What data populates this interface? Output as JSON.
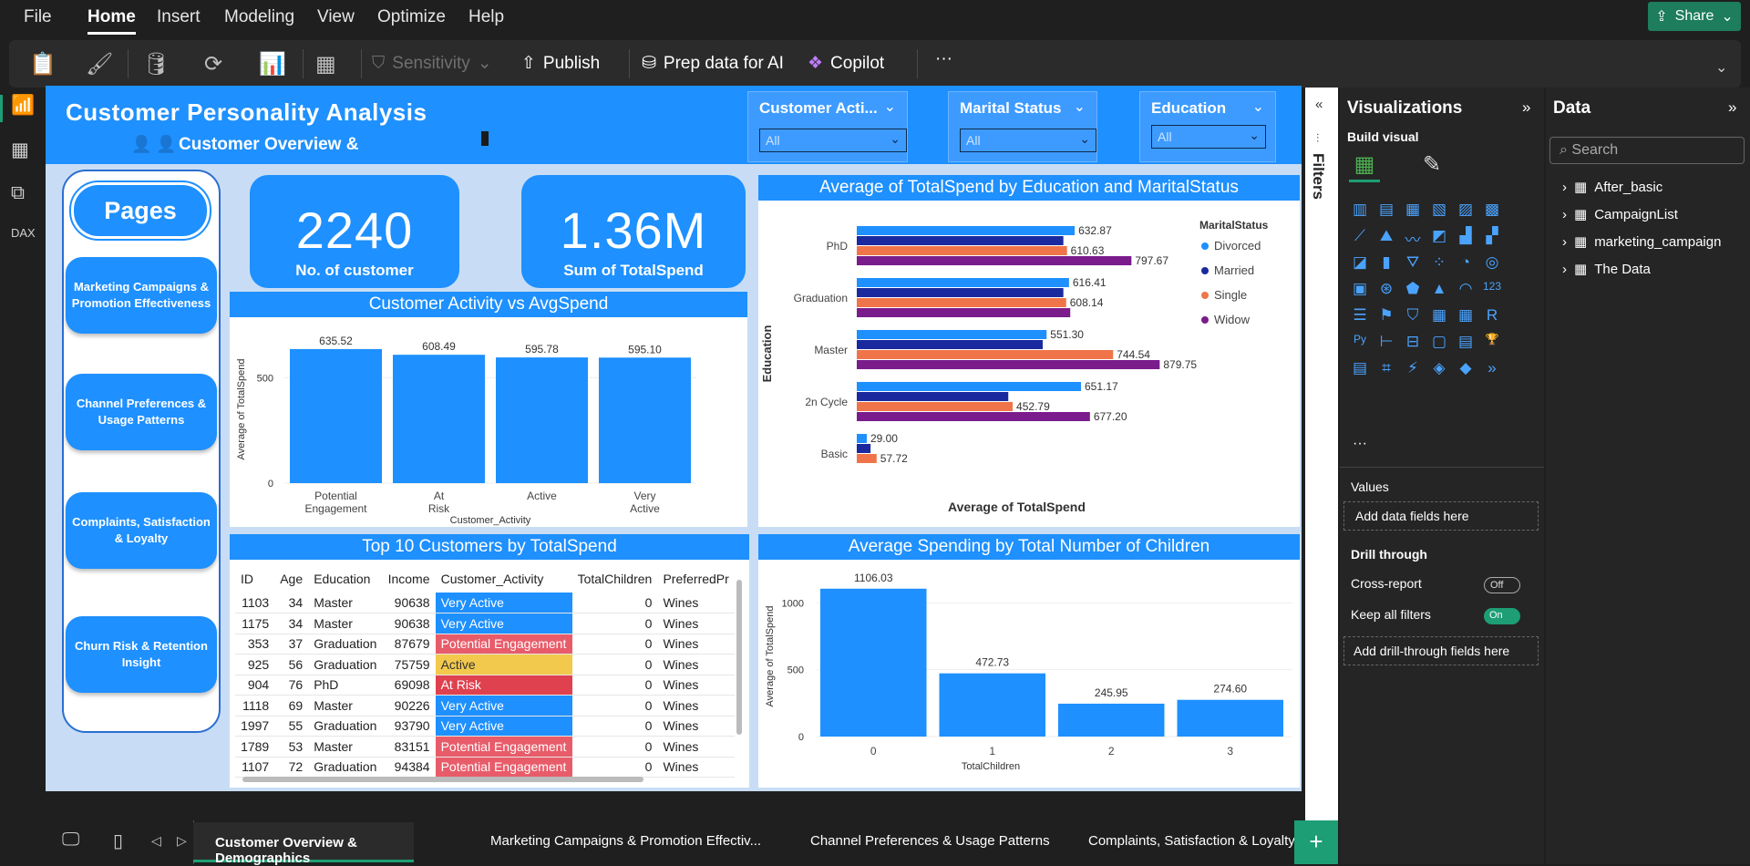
{
  "menubar": {
    "items": [
      "File",
      "Home",
      "Insert",
      "Modeling",
      "View",
      "Optimize",
      "Help"
    ],
    "share": "Share"
  },
  "ribbon": {
    "sensitivity": "Sensitivity",
    "publish": "Publish",
    "prep": "Prep data for AI",
    "copilot": "Copilot",
    "more": "···"
  },
  "header": {
    "title": "Customer Personality Analysis",
    "subtitle": "Customer Overview &"
  },
  "slicers": [
    {
      "label": "Customer Acti...",
      "value": "All"
    },
    {
      "label": "Marital Status",
      "value": "All"
    },
    {
      "label": "Education",
      "value": "All"
    }
  ],
  "pages": {
    "title": "Pages",
    "buttons": [
      "Marketing Campaigns & Promotion Effectiveness",
      "Channel Preferences & Usage Patterns",
      "Complaints, Satisfaction & Loyalty",
      "Churn Risk & Retention Insight"
    ]
  },
  "kpis": [
    {
      "value": "2240",
      "caption": "No. of customer"
    },
    {
      "value": "1.36M",
      "caption": "Sum of TotalSpend"
    }
  ],
  "chart_data": [
    {
      "type": "bar",
      "title": "Customer Activity vs AvgSpend",
      "categories": [
        "Potential Engagement",
        "At Risk",
        "Active",
        "Very Active"
      ],
      "values": [
        635.52,
        608.49,
        595.78,
        595.1
      ],
      "labels": [
        "635.52",
        "608.49",
        "595.78",
        "595.10"
      ],
      "xlabel": "Customer_Activity",
      "ylabel": "Average of TotalSpend",
      "yticks": [
        "0",
        "500"
      ],
      "ylim": [
        0,
        700
      ],
      "color": "#1e90ff"
    },
    {
      "type": "bar",
      "orientation": "horizontal",
      "title": "Average of TotalSpend by Education and MaritalStatus",
      "categories": [
        "PhD",
        "Graduation",
        "Master",
        "2n Cycle",
        "Basic"
      ],
      "legend_title": "MaritalStatus",
      "series": [
        {
          "name": "Divorced",
          "color": "#1e90ff",
          "values": [
            632.87,
            616.41,
            551.3,
            651.17,
            29.0
          ]
        },
        {
          "name": "Married",
          "color": "#1a2a9e",
          "values": [
            600,
            600,
            540,
            440,
            40
          ]
        },
        {
          "name": "Single",
          "color": "#f0744a",
          "values": [
            610.63,
            608.14,
            744.54,
            452.79,
            57.72
          ]
        },
        {
          "name": "Widow",
          "color": "#7a1c8c",
          "values": [
            797.67,
            620,
            879.75,
            677.2,
            0
          ]
        }
      ],
      "data_labels": [
        [
          "632.87",
          "",
          "610.63",
          "797.67"
        ],
        [
          "616.41",
          "",
          "608.14",
          ""
        ],
        [
          "551.30",
          "",
          "744.54",
          "879.75"
        ],
        [
          "651.17",
          "",
          "452.79",
          "677.20"
        ],
        [
          "29.00",
          "",
          "57.72",
          ""
        ]
      ],
      "xlabel": "Average of TotalSpend",
      "ylabel": "Education",
      "xlim": [
        0,
        900
      ]
    },
    {
      "type": "bar",
      "title": "Average Spending by Total Number of Children",
      "categories": [
        "0",
        "1",
        "2",
        "3"
      ],
      "values": [
        1106.03,
        472.73,
        245.95,
        274.6
      ],
      "labels": [
        "1106.03",
        "472.73",
        "245.95",
        "274.60"
      ],
      "xlabel": "TotalChildren",
      "ylabel": "Average of TotalSpend",
      "yticks": [
        "0",
        "500",
        "1000"
      ],
      "ylim": [
        0,
        1200
      ],
      "color": "#1e90ff"
    }
  ],
  "table": {
    "title": "Top 10 Customers by TotalSpend",
    "columns": [
      "ID",
      "Age",
      "Education",
      "Income",
      "Customer_Activity",
      "TotalChildren",
      "PreferredPr"
    ],
    "rows": [
      [
        "1103",
        "34",
        "Master",
        "90638",
        "Very Active",
        "0",
        "Wines"
      ],
      [
        "1175",
        "34",
        "Master",
        "90638",
        "Very Active",
        "0",
        "Wines"
      ],
      [
        "353",
        "37",
        "Graduation",
        "87679",
        "Potential Engagement",
        "0",
        "Wines"
      ],
      [
        "925",
        "56",
        "Graduation",
        "75759",
        "Active",
        "0",
        "Wines"
      ],
      [
        "904",
        "76",
        "PhD",
        "69098",
        "At Risk",
        "0",
        "Wines"
      ],
      [
        "1118",
        "69",
        "Master",
        "90226",
        "Very Active",
        "0",
        "Wines"
      ],
      [
        "1997",
        "55",
        "Graduation",
        "93790",
        "Very Active",
        "0",
        "Wines"
      ],
      [
        "1789",
        "53",
        "Master",
        "83151",
        "Potential Engagement",
        "0",
        "Wines"
      ],
      [
        "1107",
        "72",
        "Graduation",
        "94384",
        "Potential Engagement",
        "0",
        "Wines"
      ]
    ],
    "activity_colors": {
      "Very Active": "#1e90ff",
      "Potential Engagement": "#e85c6a",
      "Active": "#f2c94c",
      "At Risk": "#e0414f"
    }
  },
  "filters": {
    "label": "Filters"
  },
  "viz": {
    "title": "Visualizations",
    "build": "Build visual",
    "values": "Values",
    "add_fields": "Add data fields here",
    "drill": "Drill through",
    "cross": "Cross-report",
    "cross_state": "Off",
    "keep": "Keep all filters",
    "keep_state": "On",
    "add_drill": "Add drill-through fields here",
    "more": "···"
  },
  "data": {
    "title": "Data",
    "search": "Search",
    "tables": [
      "After_basic",
      "CampaignList",
      "marketing_campaign",
      "The Data"
    ]
  },
  "tabs": [
    "Customer Overview & Demographics",
    "Marketing Campaigns & Promotion Effectiv...",
    "Channel Preferences & Usage Patterns",
    "Complaints, Satisfaction & Loyalty"
  ]
}
